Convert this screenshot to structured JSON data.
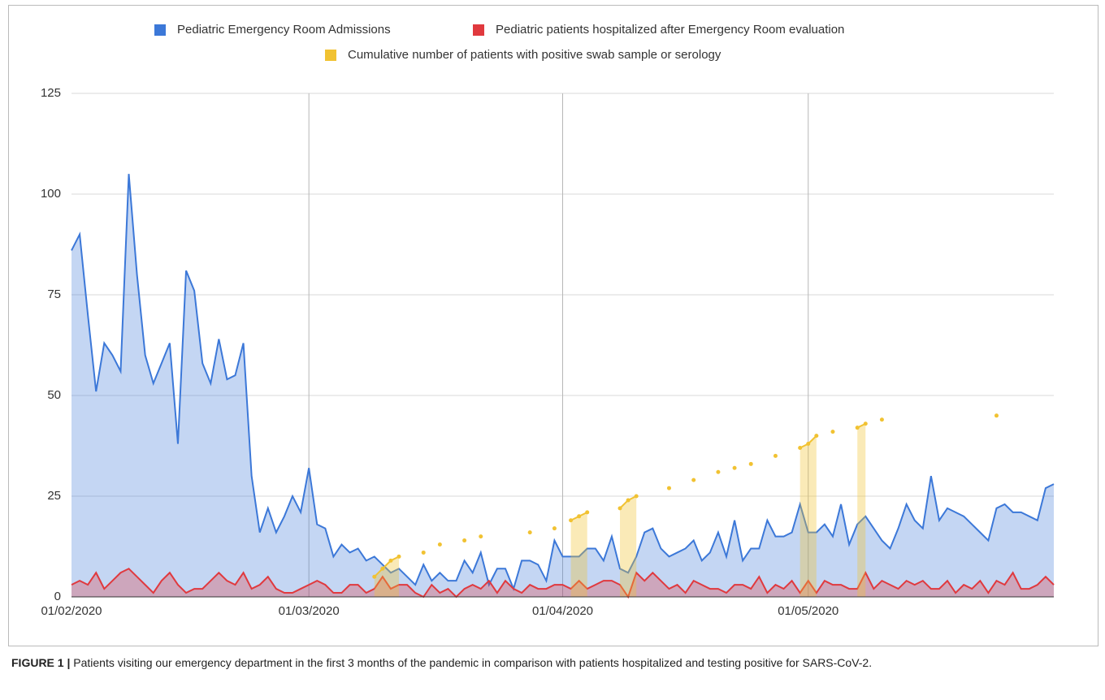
{
  "chart_data": {
    "type": "area",
    "x": [
      "01/02/2020",
      "02/02/2020",
      "03/02/2020",
      "04/02/2020",
      "05/02/2020",
      "06/02/2020",
      "07/02/2020",
      "08/02/2020",
      "09/02/2020",
      "10/02/2020",
      "11/02/2020",
      "12/02/2020",
      "13/02/2020",
      "14/02/2020",
      "15/02/2020",
      "16/02/2020",
      "17/02/2020",
      "18/02/2020",
      "19/02/2020",
      "20/02/2020",
      "21/02/2020",
      "22/02/2020",
      "23/02/2020",
      "24/02/2020",
      "25/02/2020",
      "26/02/2020",
      "27/02/2020",
      "28/02/2020",
      "29/02/2020",
      "01/03/2020",
      "02/03/2020",
      "03/03/2020",
      "04/03/2020",
      "05/03/2020",
      "06/03/2020",
      "07/03/2020",
      "08/03/2020",
      "09/03/2020",
      "10/03/2020",
      "11/03/2020",
      "12/03/2020",
      "13/03/2020",
      "14/03/2020",
      "15/03/2020",
      "16/03/2020",
      "17/03/2020",
      "18/03/2020",
      "19/03/2020",
      "20/03/2020",
      "21/03/2020",
      "22/03/2020",
      "23/03/2020",
      "24/03/2020",
      "25/03/2020",
      "26/03/2020",
      "27/03/2020",
      "28/03/2020",
      "29/03/2020",
      "30/03/2020",
      "31/03/2020",
      "01/04/2020",
      "02/04/2020",
      "03/04/2020",
      "04/04/2020",
      "05/04/2020",
      "06/04/2020",
      "07/04/2020",
      "08/04/2020",
      "09/04/2020",
      "10/04/2020",
      "11/04/2020",
      "12/04/2020",
      "13/04/2020",
      "14/04/2020",
      "15/04/2020",
      "16/04/2020",
      "17/04/2020",
      "18/04/2020",
      "19/04/2020",
      "20/04/2020",
      "21/04/2020",
      "22/04/2020",
      "23/04/2020",
      "24/04/2020",
      "25/04/2020",
      "26/04/2020",
      "27/04/2020",
      "28/04/2020",
      "29/04/2020",
      "30/04/2020",
      "01/05/2020",
      "02/05/2020",
      "03/05/2020",
      "04/05/2020",
      "05/05/2020",
      "06/05/2020",
      "07/05/2020",
      "08/05/2020",
      "09/05/2020",
      "10/05/2020",
      "11/05/2020",
      "12/05/2020",
      "13/05/2020",
      "14/05/2020",
      "15/05/2020",
      "16/05/2020",
      "17/05/2020",
      "18/05/2020",
      "19/05/2020",
      "20/05/2020",
      "21/05/2020",
      "22/05/2020",
      "23/05/2020",
      "24/05/2020",
      "25/05/2020",
      "26/05/2020",
      "27/05/2020",
      "28/05/2020",
      "29/05/2020",
      "30/05/2020",
      "31/05/2020"
    ],
    "series": [
      {
        "name": "Pediatric Emergency Room Admissions",
        "color": "#3c78d8",
        "values": [
          86,
          90,
          70,
          51,
          63,
          60,
          56,
          105,
          80,
          60,
          53,
          58,
          63,
          38,
          81,
          76,
          58,
          53,
          64,
          54,
          55,
          63,
          30,
          16,
          22,
          16,
          20,
          25,
          21,
          32,
          18,
          17,
          10,
          13,
          11,
          12,
          9,
          10,
          8,
          6,
          7,
          5,
          3,
          8,
          4,
          6,
          4,
          4,
          9,
          6,
          11,
          3,
          7,
          7,
          2,
          9,
          9,
          8,
          4,
          14,
          10,
          10,
          10,
          12,
          12,
          9,
          15,
          7,
          6,
          10,
          16,
          17,
          12,
          10,
          11,
          12,
          14,
          9,
          11,
          16,
          10,
          19,
          9,
          12,
          12,
          19,
          15,
          15,
          16,
          23,
          16,
          16,
          18,
          15,
          23,
          13,
          18,
          20,
          17,
          14,
          12,
          17,
          23,
          19,
          17,
          30,
          19,
          22,
          21,
          20,
          18,
          16,
          14,
          22,
          23,
          21,
          21,
          20,
          19,
          27,
          28
        ]
      },
      {
        "name": "Pediatric patients hospitalized after Emergency Room evaluation",
        "color": "#e0393e",
        "values": [
          3,
          4,
          3,
          6,
          2,
          4,
          6,
          7,
          5,
          3,
          1,
          4,
          6,
          3,
          1,
          2,
          2,
          4,
          6,
          4,
          3,
          6,
          2,
          3,
          5,
          2,
          1,
          1,
          2,
          3,
          4,
          3,
          1,
          1,
          3,
          3,
          1,
          2,
          5,
          2,
          3,
          3,
          1,
          0,
          3,
          1,
          2,
          0,
          2,
          3,
          2,
          4,
          1,
          4,
          2,
          1,
          3,
          2,
          2,
          3,
          3,
          2,
          4,
          2,
          3,
          4,
          4,
          3,
          0,
          6,
          4,
          6,
          4,
          2,
          3,
          1,
          4,
          3,
          2,
          2,
          1,
          3,
          3,
          2,
          5,
          1,
          3,
          2,
          4,
          1,
          4,
          1,
          4,
          3,
          3,
          2,
          2,
          6,
          2,
          4,
          3,
          2,
          4,
          3,
          4,
          2,
          2,
          4,
          1,
          3,
          2,
          4,
          1,
          4,
          3,
          6,
          2,
          2,
          3,
          5,
          3
        ]
      },
      {
        "name": "Cumulative number of patients with positive swab sample or serology",
        "color": "#f1c232",
        "markers": true,
        "values": [
          null,
          null,
          null,
          null,
          null,
          null,
          null,
          null,
          null,
          null,
          null,
          null,
          null,
          null,
          null,
          null,
          null,
          null,
          null,
          null,
          null,
          null,
          null,
          null,
          null,
          null,
          null,
          null,
          null,
          null,
          null,
          null,
          null,
          null,
          null,
          null,
          null,
          5,
          7,
          9,
          10,
          null,
          null,
          11,
          null,
          13,
          null,
          null,
          14,
          null,
          15,
          null,
          null,
          null,
          null,
          null,
          16,
          null,
          null,
          17,
          null,
          19,
          20,
          21,
          null,
          null,
          null,
          22,
          24,
          25,
          null,
          null,
          null,
          27,
          null,
          null,
          29,
          null,
          null,
          31,
          null,
          32,
          null,
          33,
          null,
          null,
          35,
          null,
          null,
          37,
          38,
          40,
          null,
          41,
          null,
          null,
          42,
          43,
          null,
          44,
          null,
          null,
          null,
          null,
          null,
          null,
          null,
          null,
          null,
          null,
          null,
          null,
          null,
          45,
          null,
          null,
          null,
          null,
          null,
          null,
          null
        ]
      }
    ],
    "ylim": [
      0,
      125
    ],
    "yticks": [
      0,
      25,
      50,
      75,
      100,
      125
    ],
    "xticks": [
      "01/02/2020",
      "01/03/2020",
      "01/04/2020",
      "01/05/2020"
    ],
    "grid": true,
    "legend": "top"
  },
  "caption": {
    "label": "FIGURE 1 |",
    "text": "Patients visiting our emergency department in the first 3 months of the pandemic in comparison with patients hospitalized and testing positive for SARS-CoV-2."
  }
}
